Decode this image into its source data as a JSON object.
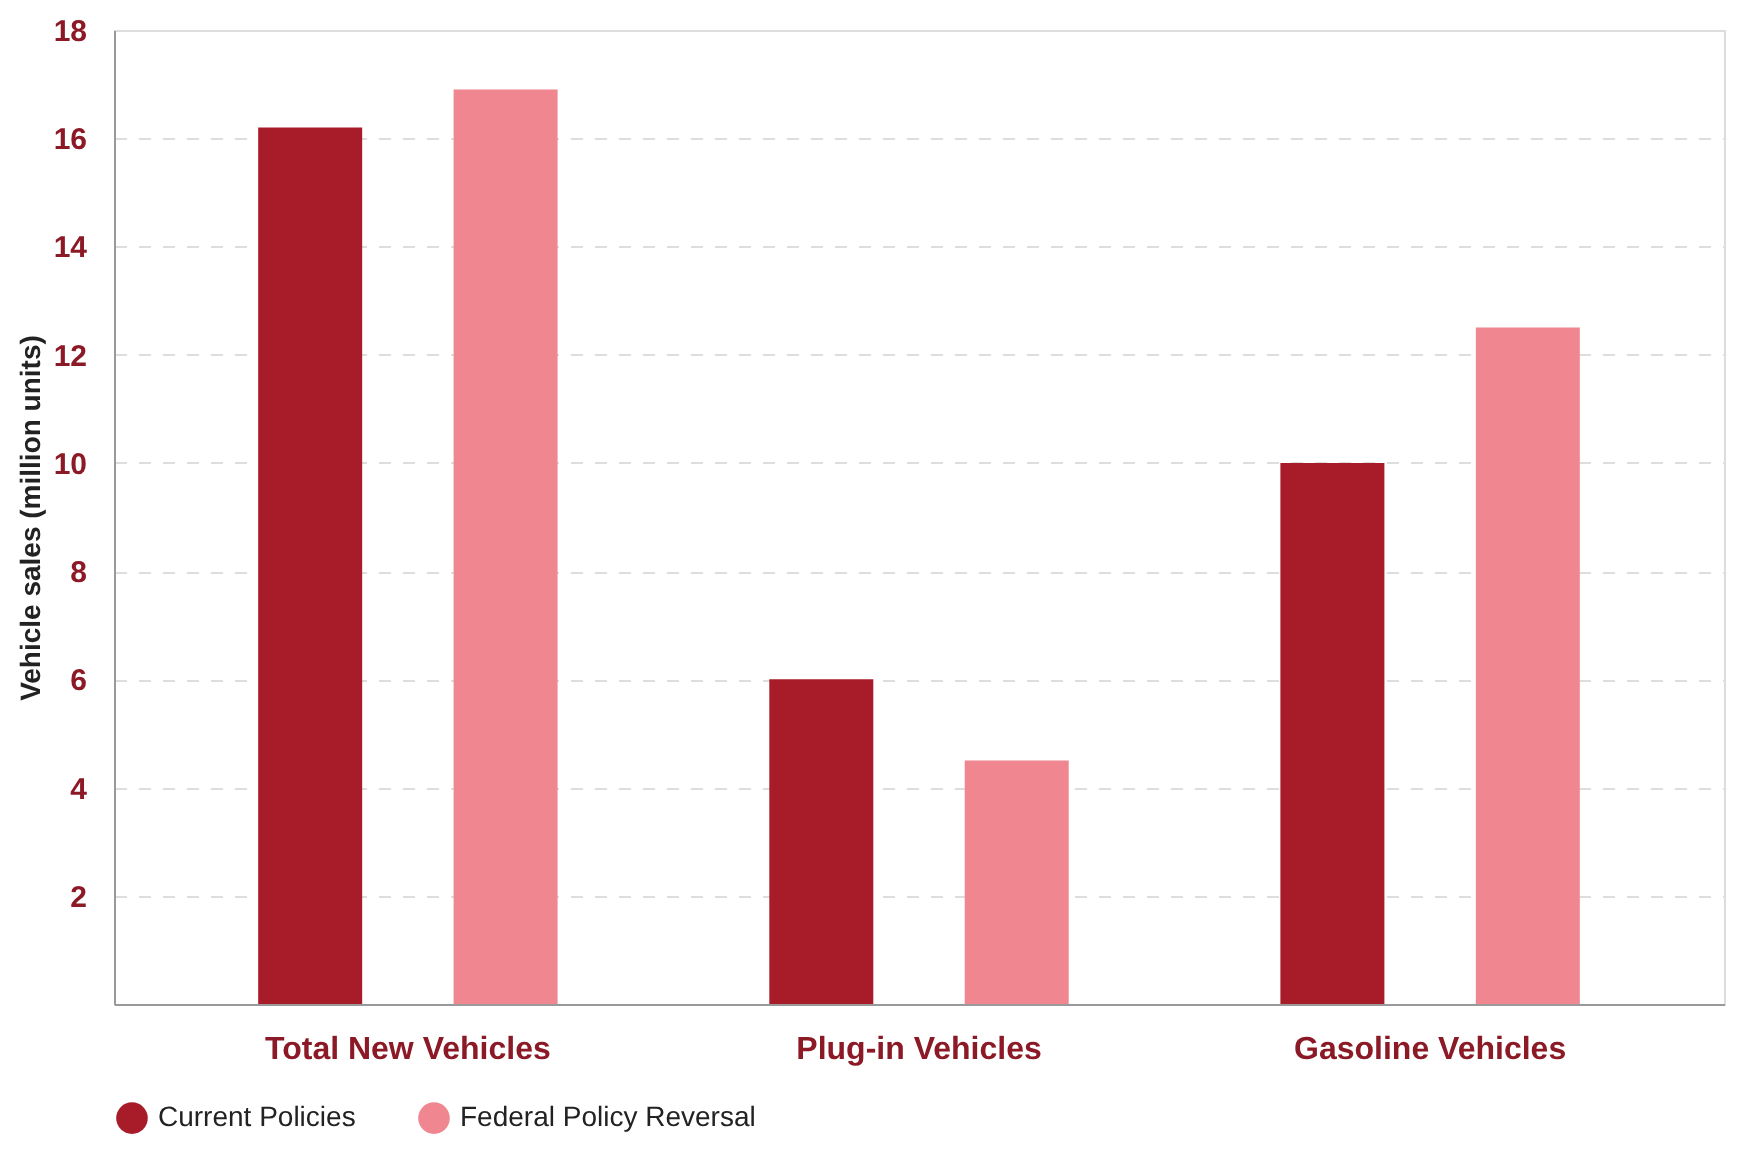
{
  "chart_data": {
    "type": "bar",
    "ylabel": "Vehicle sales (million units)",
    "categories": [
      "Total New Vehicles",
      "Plug-in Vehicles",
      "Gasoline Vehicles"
    ],
    "series": [
      {
        "name": "Current Policies",
        "color": "#a81c2a",
        "values": [
          16.2,
          6.0,
          10.0
        ]
      },
      {
        "name": "Federal Policy Reversal",
        "color": "#ef8690",
        "values": [
          16.9,
          4.5,
          12.5
        ]
      }
    ],
    "ylim": [
      0,
      18
    ],
    "yticks": [
      2,
      4,
      6,
      8,
      10,
      12,
      14,
      16,
      18
    ],
    "grid": "y",
    "legend": "bottom"
  }
}
